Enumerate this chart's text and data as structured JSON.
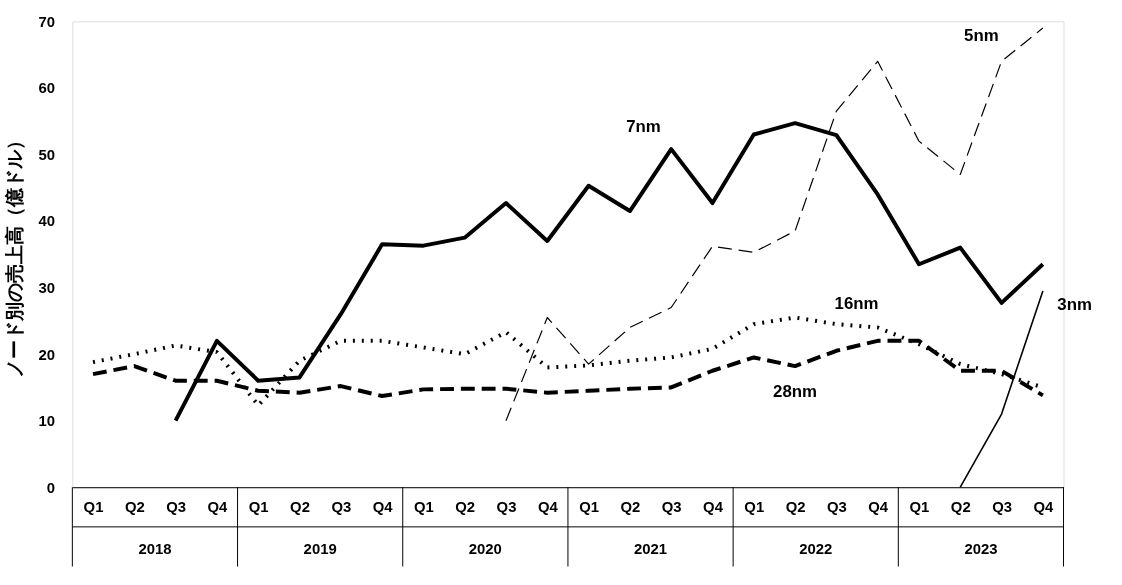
{
  "chart_data": {
    "type": "line",
    "ylabel": "ノード別の売上高（億ドル）",
    "categories": [
      "Q1",
      "Q2",
      "Q3",
      "Q4",
      "Q1",
      "Q2",
      "Q3",
      "Q4",
      "Q1",
      "Q2",
      "Q3",
      "Q4",
      "Q1",
      "Q2",
      "Q3",
      "Q4",
      "Q1",
      "Q2",
      "Q3",
      "Q4",
      "Q1",
      "Q2",
      "Q3",
      "Q4"
    ],
    "annotations": [
      "2018",
      "2019",
      "2020",
      "2021",
      "2022",
      "2023"
    ],
    "ylim": [
      0,
      70
    ],
    "yticks": [
      0,
      10,
      20,
      30,
      40,
      50,
      60,
      70
    ],
    "grid": false,
    "marker": "none",
    "series": [
      {
        "name": "7nm",
        "color": "#000000",
        "line_style": "solid",
        "values": [
          null,
          null,
          10,
          22,
          16,
          16.5,
          26,
          36.5,
          36.3,
          37.5,
          42.7,
          37,
          45.3,
          41.5,
          50.8,
          42.7,
          53,
          54.7,
          52.9,
          44,
          33.5,
          36,
          27.7,
          33.5
        ]
      },
      {
        "name": "16nm",
        "color": "#000000",
        "line_style": "dotted",
        "values": [
          18.8,
          20,
          21.3,
          20.3,
          12.3,
          19,
          22,
          22,
          21,
          20,
          23.3,
          18,
          18.3,
          19,
          19.5,
          20.8,
          24.5,
          25.5,
          24.5,
          24,
          21.5,
          18.5,
          17,
          15
        ]
      },
      {
        "name": "28nm",
        "color": "#000000",
        "line_style": "dashed",
        "values": [
          17,
          18.2,
          16,
          16,
          14.5,
          14.2,
          15.2,
          13.7,
          14.7,
          14.8,
          14.8,
          14.2,
          14.5,
          14.8,
          15,
          17.5,
          19.5,
          18.2,
          20.5,
          22,
          22,
          17.5,
          17.5,
          13.8
        ]
      },
      {
        "name": "5nm",
        "color": "#000000",
        "line_style": "dashed",
        "values": [
          null,
          null,
          null,
          null,
          null,
          null,
          null,
          null,
          null,
          null,
          10,
          25.5,
          18.5,
          24,
          27,
          36.2,
          35.3,
          38.5,
          56.5,
          64,
          52,
          47,
          64,
          69
        ]
      },
      {
        "name": "3nm",
        "color": "#000000",
        "line_style": "solid",
        "values": [
          null,
          null,
          null,
          null,
          null,
          null,
          null,
          null,
          null,
          null,
          null,
          null,
          null,
          null,
          null,
          null,
          null,
          null,
          null,
          null,
          null,
          0,
          11,
          29.5
        ]
      }
    ]
  }
}
